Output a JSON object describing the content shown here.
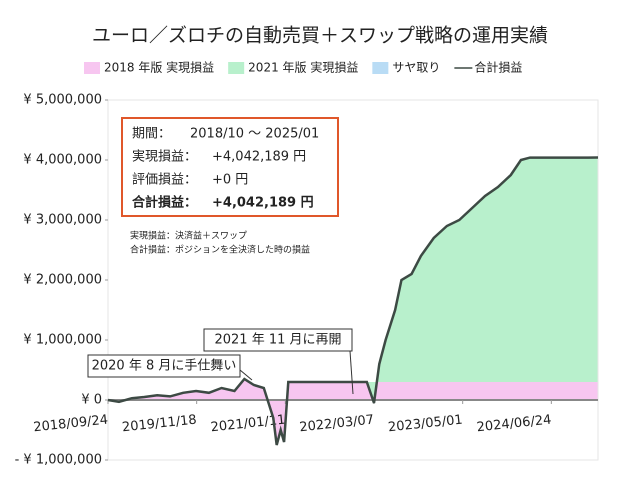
{
  "chart_data": {
    "type": "area-line",
    "title": "ユーロ／ズロチの自動売買＋スワップ戦略の運用実績",
    "x": [
      "2018/09/24",
      "2018/11/15",
      "2019/01/15",
      "2019/03/15",
      "2019/05/15",
      "2019/07/15",
      "2019/09/15",
      "2019/11/15",
      "2020/01/15",
      "2020/03/15",
      "2020/05/15",
      "2020/07/01",
      "2020/08/15",
      "2020/10/01",
      "2020/11/15",
      "2020/12/01",
      "2020/12/20",
      "2021/01/05",
      "2021/01/25",
      "2021/11/01",
      "2022/02/01",
      "2022/03/07",
      "2022/04/01",
      "2022/05/01",
      "2022/06/15",
      "2022/07/15",
      "2022/09/01",
      "2022/10/15",
      "2022/12/15",
      "2023/02/15",
      "2023/04/15",
      "2023/06/15",
      "2023/08/15",
      "2023/10/15",
      "2023/12/15",
      "2024/02/01",
      "2024/03/15",
      "2024/12/15",
      "2025/01/31"
    ],
    "series": [
      {
        "name": "2018 年版 実現損益",
        "color": "#f7c6f0",
        "kind": "area",
        "values": [
          0,
          -30000,
          30000,
          50000,
          80000,
          60000,
          120000,
          150000,
          120000,
          200000,
          150000,
          350000,
          250000,
          200000,
          -300000,
          -750000,
          -500000,
          -700000,
          300000,
          300000,
          300000,
          300000,
          300000,
          300000,
          300000,
          300000,
          300000,
          300000,
          300000,
          300000,
          300000,
          300000,
          300000,
          300000,
          300000,
          300000,
          300000,
          300000,
          300000
        ]
      },
      {
        "name": "2021 年版 実現損益",
        "color": "#b8f0cc",
        "kind": "area",
        "values": [
          0,
          0,
          0,
          0,
          0,
          0,
          0,
          0,
          0,
          0,
          0,
          0,
          0,
          0,
          0,
          0,
          0,
          0,
          0,
          0,
          0,
          -350000,
          300000,
          700000,
          1200000,
          1700000,
          1800000,
          2100000,
          2400000,
          2600000,
          2700000,
          2900000,
          3100000,
          3250000,
          3450000,
          3700000,
          3740000,
          3740000,
          3742189
        ]
      },
      {
        "name": "サヤ取り",
        "color": "#b9dcf5",
        "kind": "area",
        "values": [
          0,
          0,
          0,
          0,
          0,
          0,
          0,
          0,
          0,
          0,
          0,
          0,
          0,
          0,
          0,
          0,
          0,
          0,
          0,
          0,
          0,
          0,
          0,
          0,
          0,
          0,
          0,
          0,
          0,
          0,
          0,
          0,
          0,
          0,
          0,
          0,
          0,
          0,
          0
        ]
      },
      {
        "name": "合計損益",
        "color": "#3d4a44",
        "kind": "line",
        "values": [
          0,
          -30000,
          30000,
          50000,
          80000,
          60000,
          120000,
          150000,
          120000,
          200000,
          150000,
          350000,
          250000,
          200000,
          -300000,
          -750000,
          -500000,
          -700000,
          300000,
          300000,
          300000,
          -50000,
          600000,
          1000000,
          1500000,
          2000000,
          2100000,
          2400000,
          2700000,
          2900000,
          3000000,
          3200000,
          3400000,
          3550000,
          3750000,
          4000000,
          4040000,
          4040000,
          4042189
        ]
      }
    ],
    "xlim": [
      "2018/09/24",
      "2025/01/31"
    ],
    "xticks": [
      "2018/09/24",
      "2019/11/18",
      "2021/01/11",
      "2022/03/07",
      "2023/05/01",
      "2024/06/24"
    ],
    "ylim": [
      -1000000,
      5000000
    ],
    "yticks": [
      {
        "value": -1000000,
        "label": "- ¥ 1,000,000"
      },
      {
        "value": 0,
        "label": "¥ 0"
      },
      {
        "value": 1000000,
        "label": "¥ 1,000,000"
      },
      {
        "value": 2000000,
        "label": "¥ 2,000,000"
      },
      {
        "value": 3000000,
        "label": "¥ 3,000,000"
      },
      {
        "value": 4000000,
        "label": "¥ 4,000,000"
      },
      {
        "value": 5000000,
        "label": "¥ 5,000,000"
      }
    ],
    "grid": false,
    "legend": "top",
    "info_box": {
      "rows": [
        {
          "label": "期間：",
          "value": "2018/10 〜 2025/01"
        },
        {
          "label": "実現損益：",
          "value": "+4,042,189 円"
        },
        {
          "label": "評価損益：",
          "value": "+0 円"
        },
        {
          "label": "合計損益：",
          "value": "+4,042,189 円"
        }
      ],
      "notes": [
        "実現損益：決済益＋スワップ",
        "合計損益：ポジションを全決済した時の損益"
      ]
    },
    "annotations": [
      "2021 年 11 月に再開",
      "2020 年 8 月に手仕舞い"
    ]
  }
}
